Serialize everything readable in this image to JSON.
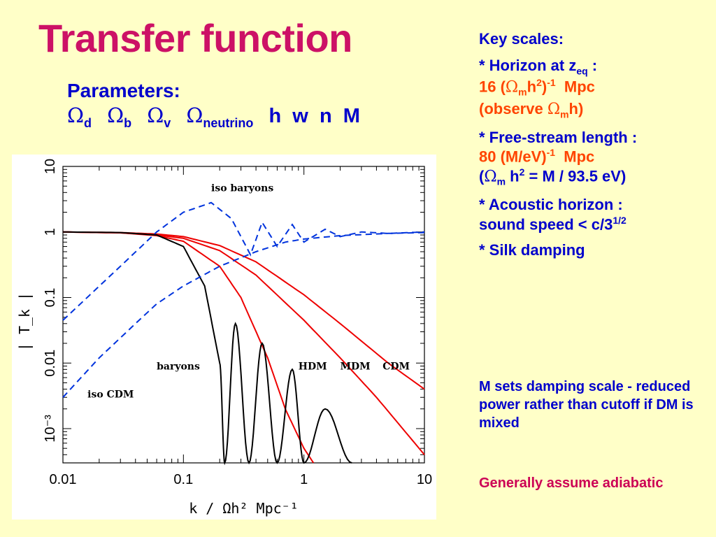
{
  "slide": {
    "title": "Transfer function",
    "params_heading": "Parameters:",
    "params": [
      {
        "sym": "Ω",
        "sub": "d"
      },
      {
        "sym": "Ω",
        "sub": "b"
      },
      {
        "sym": "Ω",
        "sub": "v"
      },
      {
        "sym": "Ω",
        "sub": "neutrino"
      }
    ],
    "params_tail": "h  w  n  M"
  },
  "key_scales": {
    "heading": "Key scales:",
    "horizon_label": "* Horizon at z",
    "horizon_sub": "eq",
    "horizon_colon": " :",
    "horizon_value_pre": "16 (",
    "horizon_value_omega": "Ω",
    "horizon_value_sub": "m",
    "horizon_value_mid": "h",
    "horizon_value_sup": "2",
    "horizon_value_close": ")",
    "horizon_value_sup2": "-1",
    "horizon_value_unit": "  Mpc",
    "observe_pre": "(observe ",
    "observe_omega": "Ω",
    "observe_sub": "m",
    "observe_post": "h)",
    "freestream_label": "* Free-stream length :",
    "freestream_value": "80 (M/eV)",
    "freestream_sup": "-1",
    "freestream_unit": "  Mpc",
    "fs_note_pre": "(",
    "fs_note_omega": "Ω",
    "fs_note_sub": "m",
    "fs_note_mid": " h",
    "fs_note_sup": "2",
    "fs_note_post": " = M / 93.5 eV)",
    "acoustic_label": "* Acoustic horizon :",
    "acoustic_value": "sound speed < c/3",
    "acoustic_sup": "1/2",
    "silk_label": "* Silk damping"
  },
  "notes": {
    "damping": "M sets damping scale - reduced power rather than cutoff if DM is mixed",
    "adiabatic": "Generally assume adiabatic"
  },
  "colors": {
    "background": "#ffffc8",
    "title": "#cc1166",
    "blue_text": "#0000cc",
    "orange_text": "#ff4400",
    "magenta_text": "#cc0055",
    "curve_red": "#ee0000",
    "curve_blue": "#0033dd",
    "curve_black": "#000000"
  },
  "chart_data": {
    "type": "line",
    "xscale": "log",
    "yscale": "log",
    "xlim": [
      0.01,
      10
    ],
    "ylim": [
      0.0003,
      10
    ],
    "xlabel": "k / Ωh² Mpc⁻¹",
    "ylabel": "| T_k |",
    "x_ticks": [
      "0.01",
      "0.1",
      "1",
      "10"
    ],
    "y_ticks": [
      "10⁻³",
      "0.01",
      "0.1",
      "1",
      "10"
    ],
    "annotations": [
      "iso baryons",
      "baryons",
      "HDM",
      "MDM",
      "CDM",
      "iso CDM"
    ],
    "series": [
      {
        "name": "CDM",
        "color": "red",
        "style": "solid",
        "x": [
          0.01,
          0.03,
          0.06,
          0.1,
          0.2,
          0.4,
          1,
          2,
          5,
          10
        ],
        "y": [
          1.0,
          0.98,
          0.93,
          0.85,
          0.62,
          0.35,
          0.11,
          0.04,
          0.01,
          0.004
        ]
      },
      {
        "name": "MDM",
        "color": "red",
        "style": "solid",
        "x": [
          0.01,
          0.03,
          0.06,
          0.1,
          0.2,
          0.4,
          1,
          2,
          4,
          10
        ],
        "y": [
          1.0,
          0.97,
          0.9,
          0.8,
          0.52,
          0.22,
          0.045,
          0.012,
          0.003,
          0.0004
        ]
      },
      {
        "name": "HDM",
        "color": "red",
        "style": "solid",
        "x": [
          0.01,
          0.03,
          0.06,
          0.1,
          0.2,
          0.3,
          0.5,
          0.7,
          1,
          1.2
        ],
        "y": [
          1.0,
          0.97,
          0.88,
          0.72,
          0.3,
          0.1,
          0.012,
          0.002,
          0.0005,
          0.0003
        ]
      },
      {
        "name": "baryons",
        "color": "black",
        "style": "solid",
        "x": [
          0.01,
          0.03,
          0.06,
          0.1,
          0.15,
          0.2,
          0.22,
          0.27,
          0.35,
          0.45,
          0.6,
          0.8,
          1,
          1.5,
          2.5
        ],
        "y": [
          1.0,
          0.98,
          0.9,
          0.6,
          0.15,
          0.01,
          0.0003,
          0.04,
          0.0003,
          0.02,
          0.0003,
          0.008,
          0.0003,
          0.002,
          0.0003
        ]
      },
      {
        "name": "iso baryons",
        "color": "blue",
        "style": "dashed",
        "x": [
          0.01,
          0.03,
          0.06,
          0.1,
          0.17,
          0.25,
          0.36,
          0.45,
          0.6,
          0.8,
          1,
          1.5,
          2,
          3,
          5,
          10
        ],
        "y": [
          0.045,
          0.3,
          1.0,
          2.0,
          2.8,
          1.6,
          0.45,
          1.4,
          0.6,
          1.3,
          0.7,
          1.1,
          0.85,
          1.0,
          0.95,
          1.0
        ]
      },
      {
        "name": "iso CDM",
        "color": "blue",
        "style": "dashed",
        "x": [
          0.01,
          0.02,
          0.04,
          0.06,
          0.1,
          0.2,
          0.4,
          0.7,
          1,
          2,
          5,
          10
        ],
        "y": [
          0.003,
          0.012,
          0.04,
          0.08,
          0.15,
          0.3,
          0.5,
          0.7,
          0.78,
          0.88,
          0.95,
          0.98
        ]
      }
    ]
  }
}
